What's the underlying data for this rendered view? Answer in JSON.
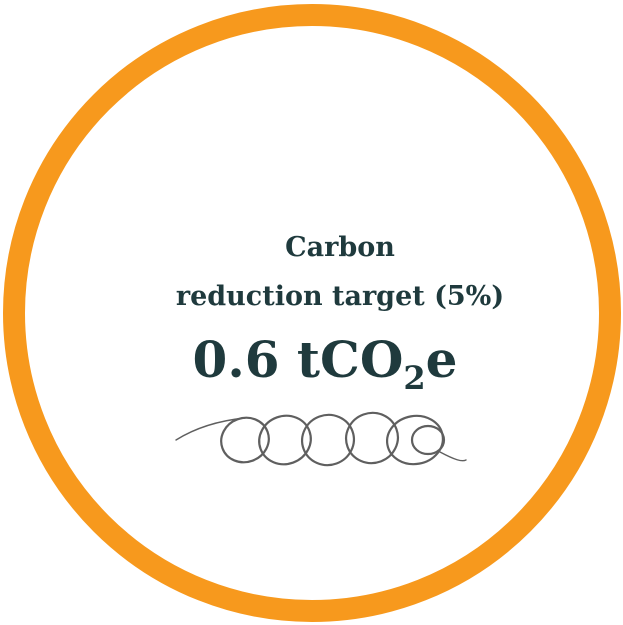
{
  "badge": {
    "title_lines": [
      "Carbon",
      "reduction target (5%)"
    ],
    "value_parts": [
      "0.6 tCO",
      "2",
      "e"
    ]
  }
}
